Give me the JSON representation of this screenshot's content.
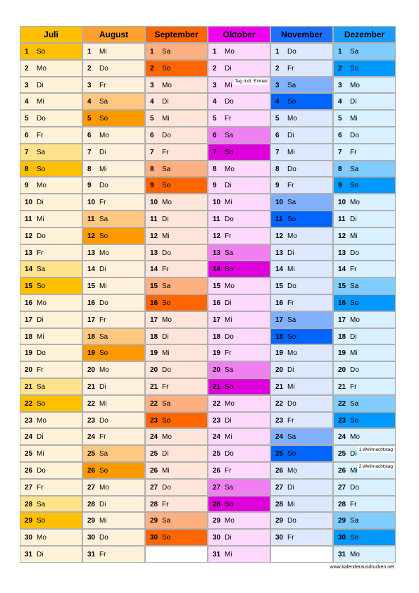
{
  "months": [
    {
      "name": "Juli",
      "colors": {
        "header": "#ffc000",
        "body": "#fff2d9",
        "Sa": "#ffe38a",
        "So": "#ffc000"
      },
      "days": [
        [
          1,
          "So"
        ],
        [
          2,
          "Mo"
        ],
        [
          3,
          "Di"
        ],
        [
          4,
          "Mi"
        ],
        [
          5,
          "Do"
        ],
        [
          6,
          "Fr"
        ],
        [
          7,
          "Sa"
        ],
        [
          8,
          "So"
        ],
        [
          9,
          "Mo"
        ],
        [
          10,
          "Di"
        ],
        [
          11,
          "Mi"
        ],
        [
          12,
          "Do"
        ],
        [
          13,
          "Fr"
        ],
        [
          14,
          "Sa"
        ],
        [
          15,
          "So"
        ],
        [
          16,
          "Mo"
        ],
        [
          17,
          "Di"
        ],
        [
          18,
          "Mi"
        ],
        [
          19,
          "Do"
        ],
        [
          20,
          "Fr"
        ],
        [
          21,
          "Sa"
        ],
        [
          22,
          "So"
        ],
        [
          23,
          "Mo"
        ],
        [
          24,
          "Di"
        ],
        [
          25,
          "Mi"
        ],
        [
          26,
          "Do"
        ],
        [
          27,
          "Fr"
        ],
        [
          28,
          "Sa"
        ],
        [
          29,
          "So"
        ],
        [
          30,
          "Mo"
        ],
        [
          31,
          "Di"
        ]
      ]
    },
    {
      "name": "August",
      "colors": {
        "header": "#ffa030",
        "body": "#fff0dc",
        "Sa": "#ffc880",
        "So": "#ff9900"
      },
      "days": [
        [
          1,
          "Mi"
        ],
        [
          2,
          "Do"
        ],
        [
          3,
          "Fr"
        ],
        [
          4,
          "Sa"
        ],
        [
          5,
          "So"
        ],
        [
          6,
          "Mo"
        ],
        [
          7,
          "Di"
        ],
        [
          8,
          "Mi"
        ],
        [
          9,
          "Do"
        ],
        [
          10,
          "Fr"
        ],
        [
          11,
          "Sa"
        ],
        [
          12,
          "So"
        ],
        [
          13,
          "Mo"
        ],
        [
          14,
          "Di"
        ],
        [
          15,
          "Mi"
        ],
        [
          16,
          "Do"
        ],
        [
          17,
          "Fr"
        ],
        [
          18,
          "Sa"
        ],
        [
          19,
          "So"
        ],
        [
          20,
          "Mo"
        ],
        [
          21,
          "Di"
        ],
        [
          22,
          "Mi"
        ],
        [
          23,
          "Do"
        ],
        [
          24,
          "Fr"
        ],
        [
          25,
          "Sa"
        ],
        [
          26,
          "So"
        ],
        [
          27,
          "Mo"
        ],
        [
          28,
          "Di"
        ],
        [
          29,
          "Mi"
        ],
        [
          30,
          "Do"
        ],
        [
          31,
          "Fr"
        ]
      ]
    },
    {
      "name": "September",
      "colors": {
        "header": "#ff6600",
        "body": "#ffe5d9",
        "Sa": "#ffb080",
        "So": "#ff6600"
      },
      "days": [
        [
          1,
          "Sa"
        ],
        [
          2,
          "So"
        ],
        [
          3,
          "Mo"
        ],
        [
          4,
          "Di"
        ],
        [
          5,
          "Mi"
        ],
        [
          6,
          "Do"
        ],
        [
          7,
          "Fr"
        ],
        [
          8,
          "Sa"
        ],
        [
          9,
          "So"
        ],
        [
          10,
          "Mo"
        ],
        [
          11,
          "Di"
        ],
        [
          12,
          "Mi"
        ],
        [
          13,
          "Do"
        ],
        [
          14,
          "Fr"
        ],
        [
          15,
          "Sa"
        ],
        [
          16,
          "So"
        ],
        [
          17,
          "Mo"
        ],
        [
          18,
          "Di"
        ],
        [
          19,
          "Mi"
        ],
        [
          20,
          "Do"
        ],
        [
          21,
          "Fr"
        ],
        [
          22,
          "Sa"
        ],
        [
          23,
          "So"
        ],
        [
          24,
          "Mo"
        ],
        [
          25,
          "Di"
        ],
        [
          26,
          "Mi"
        ],
        [
          27,
          "Do"
        ],
        [
          28,
          "Fr"
        ],
        [
          29,
          "Sa"
        ],
        [
          30,
          "So"
        ]
      ]
    },
    {
      "name": "Oktober",
      "colors": {
        "header": "#ee00ee",
        "body": "#fdd9fd",
        "Sa": "#f080f0",
        "So": "#dd00dd"
      },
      "days": [
        [
          1,
          "Mo"
        ],
        [
          2,
          "Di"
        ],
        [
          3,
          "Mi",
          "Tag d.dt. Einheit"
        ],
        [
          4,
          "Do"
        ],
        [
          5,
          "Fr"
        ],
        [
          6,
          "Sa"
        ],
        [
          7,
          "So"
        ],
        [
          8,
          "Mo"
        ],
        [
          9,
          "Di"
        ],
        [
          10,
          "Mi"
        ],
        [
          11,
          "Do"
        ],
        [
          12,
          "Fr"
        ],
        [
          13,
          "Sa"
        ],
        [
          14,
          "So"
        ],
        [
          15,
          "Mo"
        ],
        [
          16,
          "Di"
        ],
        [
          17,
          "Mi"
        ],
        [
          18,
          "Do"
        ],
        [
          19,
          "Fr"
        ],
        [
          20,
          "Sa"
        ],
        [
          21,
          "So"
        ],
        [
          22,
          "Mo"
        ],
        [
          23,
          "Di"
        ],
        [
          24,
          "Mi"
        ],
        [
          25,
          "Do"
        ],
        [
          26,
          "Fr"
        ],
        [
          27,
          "Sa"
        ],
        [
          28,
          "So"
        ],
        [
          29,
          "Mo"
        ],
        [
          30,
          "Di"
        ],
        [
          31,
          "Mi"
        ]
      ]
    },
    {
      "name": "November",
      "colors": {
        "header": "#1f6fff",
        "body": "#dde8ff",
        "Sa": "#80b0ff",
        "So": "#0066ff"
      },
      "days": [
        [
          1,
          "Do"
        ],
        [
          2,
          "Fr"
        ],
        [
          3,
          "Sa"
        ],
        [
          4,
          "So"
        ],
        [
          5,
          "Mo"
        ],
        [
          6,
          "Di"
        ],
        [
          7,
          "Mi"
        ],
        [
          8,
          "Do"
        ],
        [
          9,
          "Fr"
        ],
        [
          10,
          "Sa"
        ],
        [
          11,
          "So"
        ],
        [
          12,
          "Mo"
        ],
        [
          13,
          "Di"
        ],
        [
          14,
          "Mi"
        ],
        [
          15,
          "Do"
        ],
        [
          16,
          "Fr"
        ],
        [
          17,
          "Sa"
        ],
        [
          18,
          "So"
        ],
        [
          19,
          "Mo"
        ],
        [
          20,
          "Di"
        ],
        [
          21,
          "Mi"
        ],
        [
          22,
          "Do"
        ],
        [
          23,
          "Fr"
        ],
        [
          24,
          "Sa"
        ],
        [
          25,
          "So"
        ],
        [
          26,
          "Mo"
        ],
        [
          27,
          "Di"
        ],
        [
          28,
          "Mi"
        ],
        [
          29,
          "Do"
        ],
        [
          30,
          "Fr"
        ]
      ]
    },
    {
      "name": "Dezember",
      "colors": {
        "header": "#1a9cff",
        "body": "#d9f0ff",
        "Sa": "#80ccff",
        "So": "#0099ff"
      },
      "days": [
        [
          1,
          "Sa"
        ],
        [
          2,
          "So"
        ],
        [
          3,
          "Mo"
        ],
        [
          4,
          "Di"
        ],
        [
          5,
          "Mi"
        ],
        [
          6,
          "Do"
        ],
        [
          7,
          "Fr"
        ],
        [
          8,
          "Sa"
        ],
        [
          9,
          "So"
        ],
        [
          10,
          "Mo"
        ],
        [
          11,
          "Di"
        ],
        [
          12,
          "Mi"
        ],
        [
          13,
          "Do"
        ],
        [
          14,
          "Fr"
        ],
        [
          15,
          "Sa"
        ],
        [
          16,
          "So"
        ],
        [
          17,
          "Mo"
        ],
        [
          18,
          "Di"
        ],
        [
          19,
          "Mi"
        ],
        [
          20,
          "Do"
        ],
        [
          21,
          "Fr"
        ],
        [
          22,
          "Sa"
        ],
        [
          23,
          "So"
        ],
        [
          24,
          "Mo"
        ],
        [
          25,
          "Di",
          "1.Weihnachtstag"
        ],
        [
          26,
          "Mi",
          "2.Weihnachtstag"
        ],
        [
          27,
          "Do"
        ],
        [
          28,
          "Fr"
        ],
        [
          29,
          "Sa"
        ],
        [
          30,
          "So"
        ],
        [
          31,
          "Mo"
        ]
      ]
    }
  ],
  "footer": "www.kalenderausdrucken.net"
}
